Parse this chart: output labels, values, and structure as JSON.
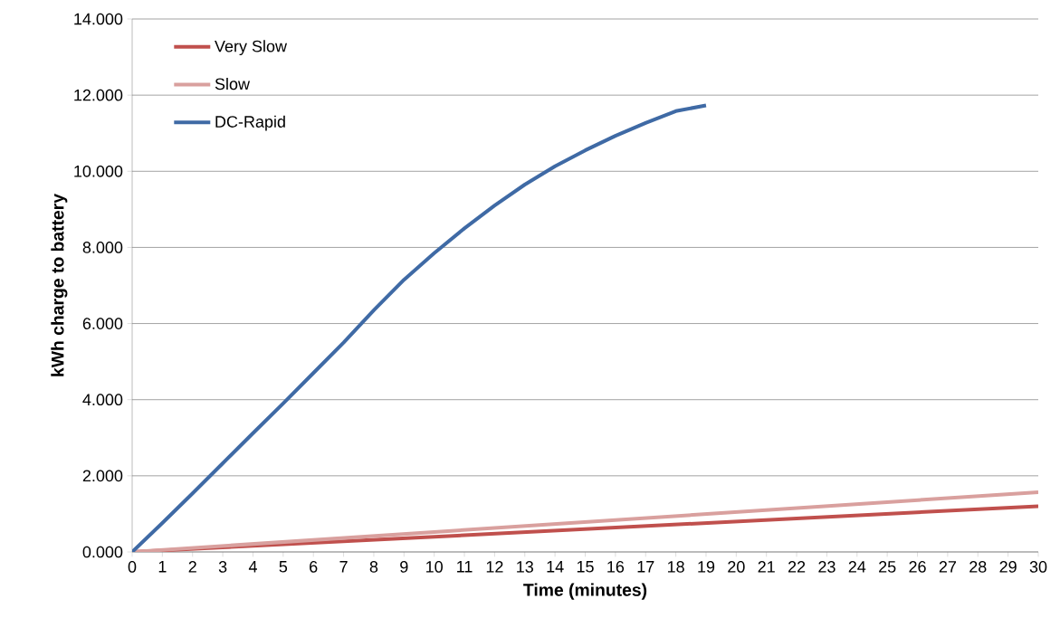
{
  "chart_data": {
    "type": "line",
    "xlabel": "Time (minutes)",
    "ylabel": "kWh charge to battery",
    "series": [
      {
        "name": "Very Slow",
        "color": "#c0504d",
        "x": [
          0,
          30
        ],
        "values": [
          0,
          1.2
        ]
      },
      {
        "name": "Slow",
        "color": "#d9a09e",
        "x": [
          0,
          30
        ],
        "values": [
          0,
          1.57
        ]
      },
      {
        "name": "DC-Rapid",
        "color": "#3f6aa5",
        "x": [
          0,
          1,
          2,
          3,
          4,
          5,
          6,
          7,
          8,
          9,
          10,
          11,
          12,
          13,
          14,
          15,
          16,
          17,
          18,
          19
        ],
        "values": [
          0,
          0.76,
          1.54,
          2.33,
          3.12,
          3.9,
          4.7,
          5.5,
          6.35,
          7.15,
          7.85,
          8.5,
          9.1,
          9.65,
          10.13,
          10.55,
          10.93,
          11.27,
          11.58,
          11.73
        ]
      }
    ],
    "xlim": [
      0,
      30
    ],
    "ylim": [
      0,
      14
    ],
    "xticks": [
      0,
      1,
      2,
      3,
      4,
      5,
      6,
      7,
      8,
      9,
      10,
      11,
      12,
      13,
      14,
      15,
      16,
      17,
      18,
      19,
      20,
      21,
      22,
      23,
      24,
      25,
      26,
      27,
      28,
      29,
      30
    ],
    "yticks": [
      {
        "value": 0,
        "label": "0.000"
      },
      {
        "value": 2,
        "label": "2.000"
      },
      {
        "value": 4,
        "label": "4.000"
      },
      {
        "value": 6,
        "label": "6.000"
      },
      {
        "value": 8,
        "label": "8.000"
      },
      {
        "value": 10,
        "label": "10.000"
      },
      {
        "value": 12,
        "label": "12.000"
      },
      {
        "value": 14,
        "label": "14.000"
      }
    ],
    "grid": "y",
    "legend": "top left",
    "line_style": "solid"
  }
}
